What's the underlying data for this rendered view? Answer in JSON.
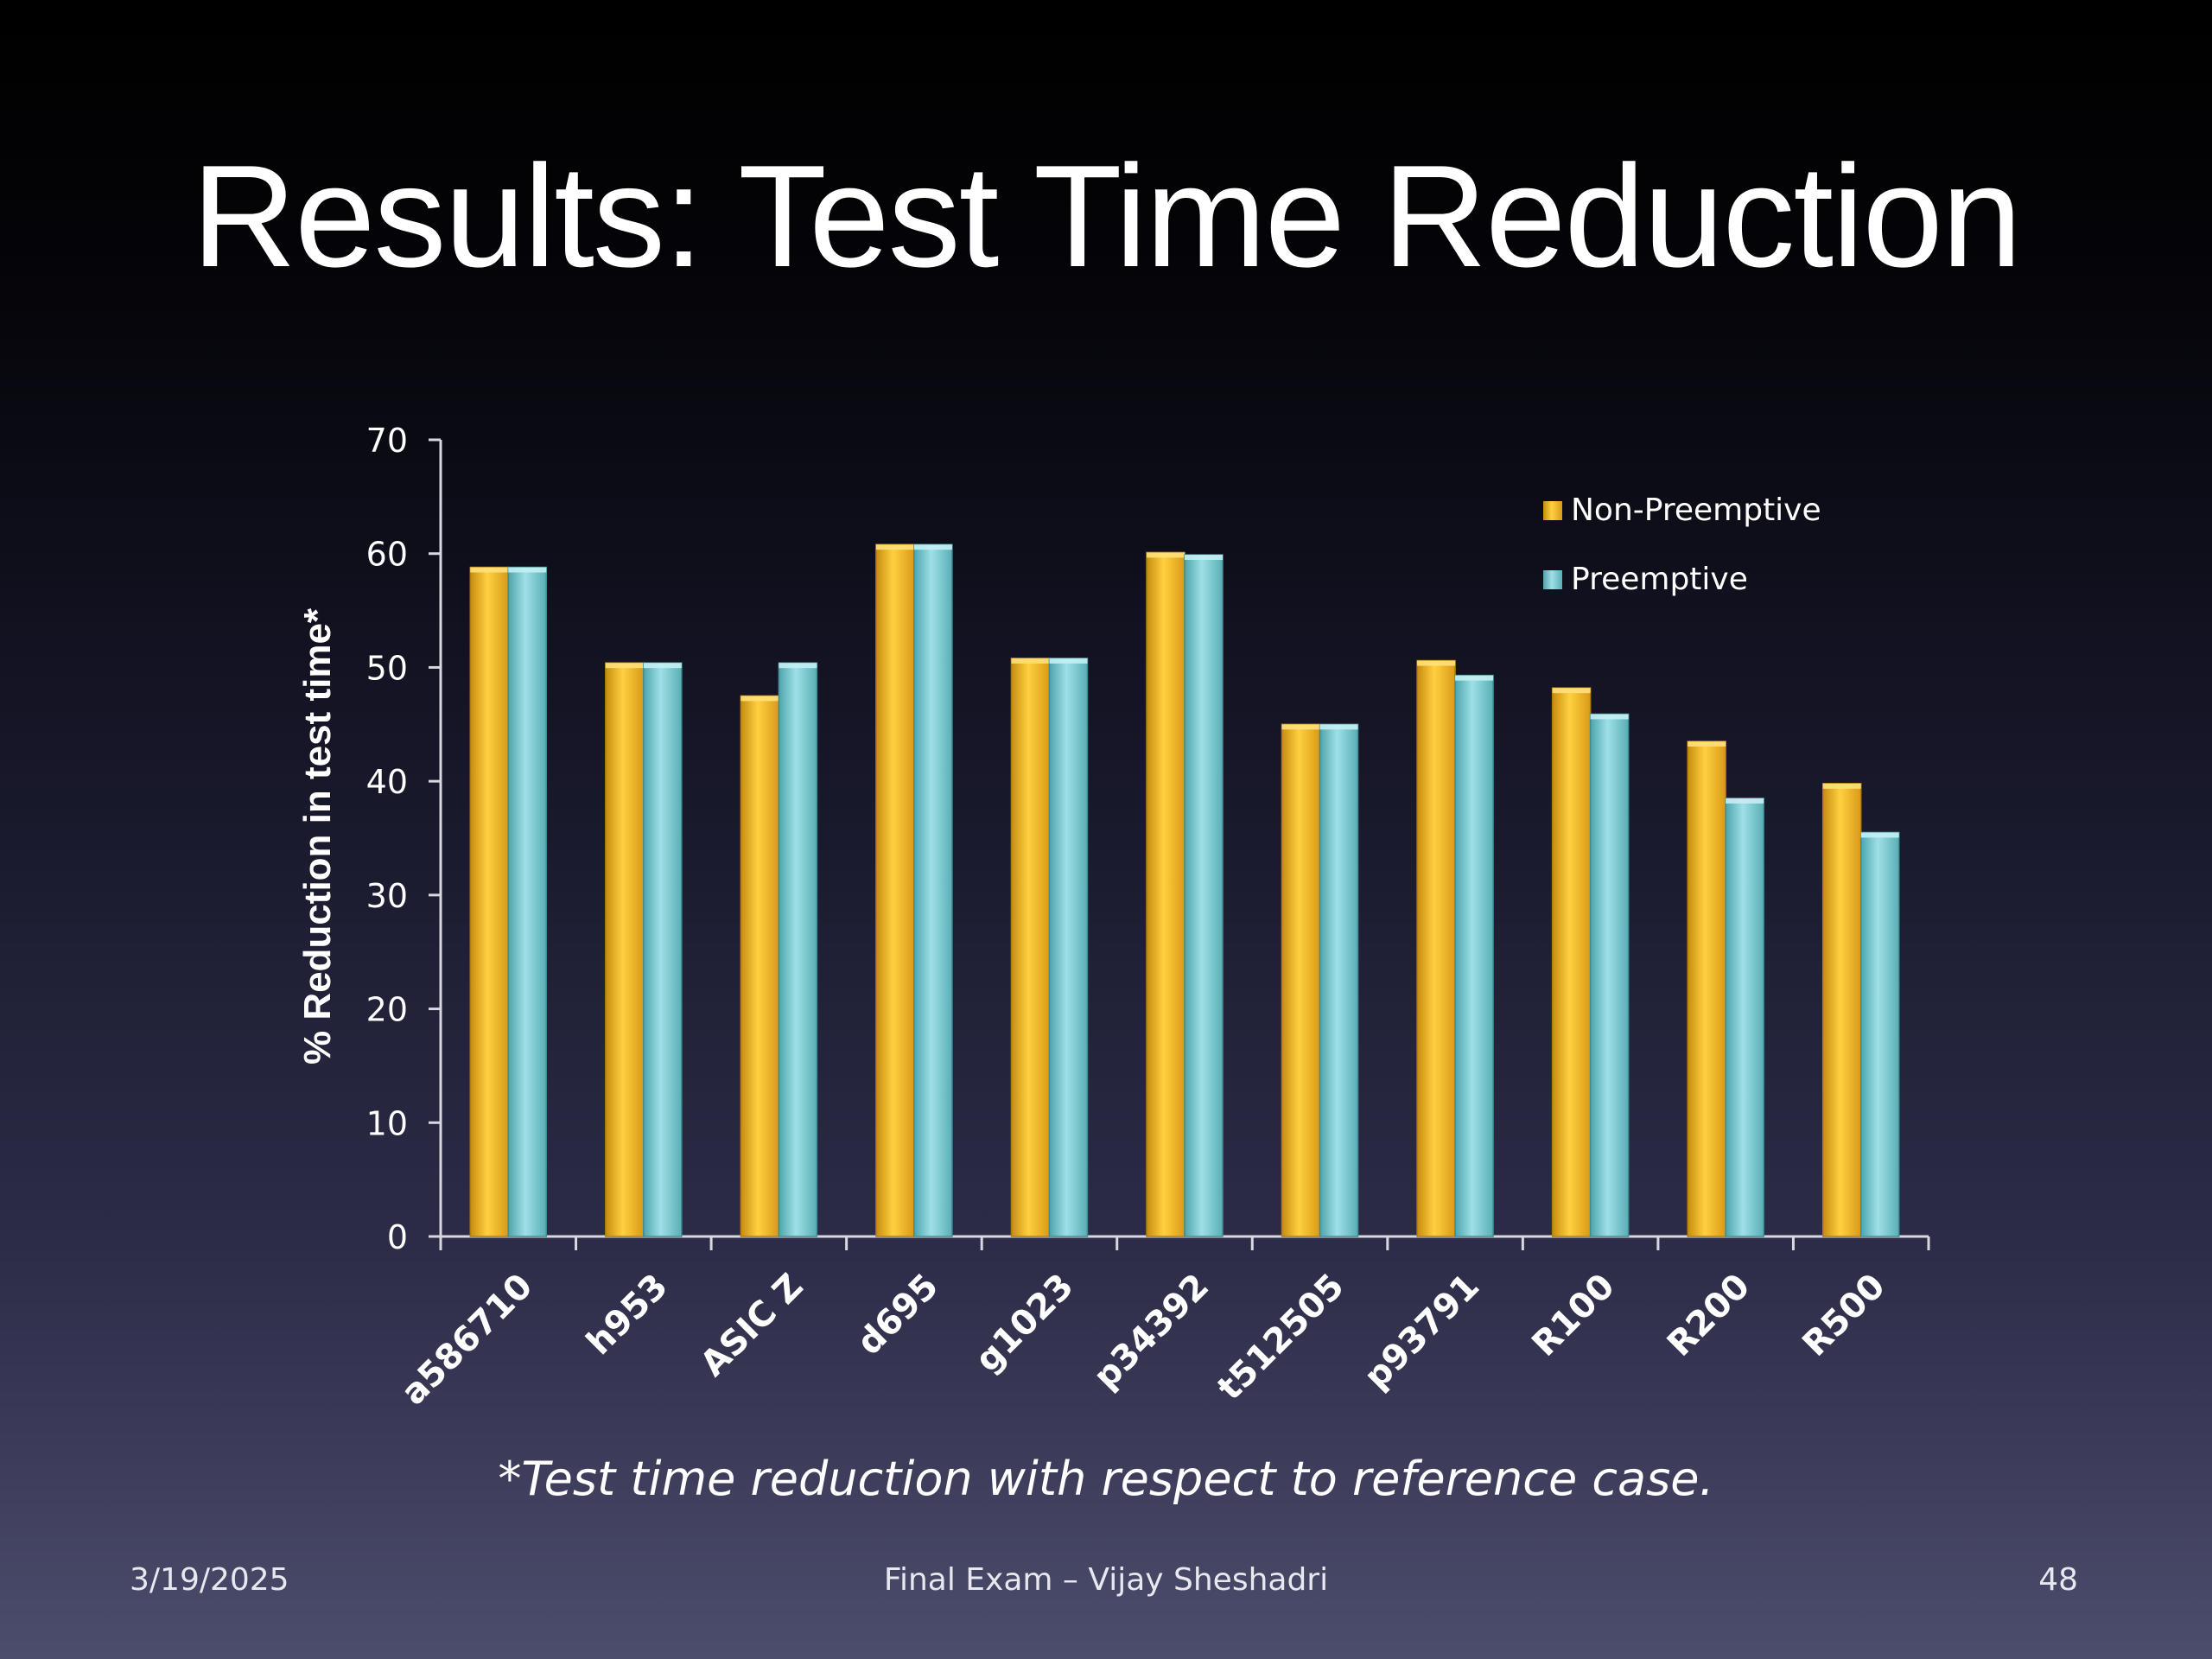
{
  "slide": {
    "title": "Results: Test Time Reduction",
    "footnote": "*Test time reduction with respect to reference case.",
    "footer": {
      "date": "3/19/2025",
      "center": "Final Exam – Vijay Sheshadri",
      "page": "48"
    }
  },
  "chart_data": {
    "type": "bar",
    "title": "",
    "xlabel": "",
    "ylabel": "% Reduction in test time*",
    "ylim": [
      0,
      70
    ],
    "yticks": [
      0,
      10,
      20,
      30,
      40,
      50,
      60,
      70
    ],
    "grid": false,
    "legend_position": "top-right",
    "categories": [
      "a586710",
      "h953",
      "ASIC Z",
      "d695",
      "g1023",
      "p34392",
      "t512505",
      "p93791",
      "R100",
      "R200",
      "R500"
    ],
    "series": [
      {
        "name": "Non-Preemptive",
        "color": "#F2B724",
        "values": [
          58.8,
          50.4,
          47.5,
          60.8,
          50.8,
          60.1,
          45.0,
          50.6,
          48.2,
          43.5,
          39.8
        ]
      },
      {
        "name": "Preemptive",
        "color": "#6FC4CC",
        "values": [
          58.8,
          50.4,
          50.4,
          60.8,
          50.8,
          59.9,
          45.0,
          49.3,
          45.9,
          38.5,
          35.5
        ]
      }
    ]
  }
}
